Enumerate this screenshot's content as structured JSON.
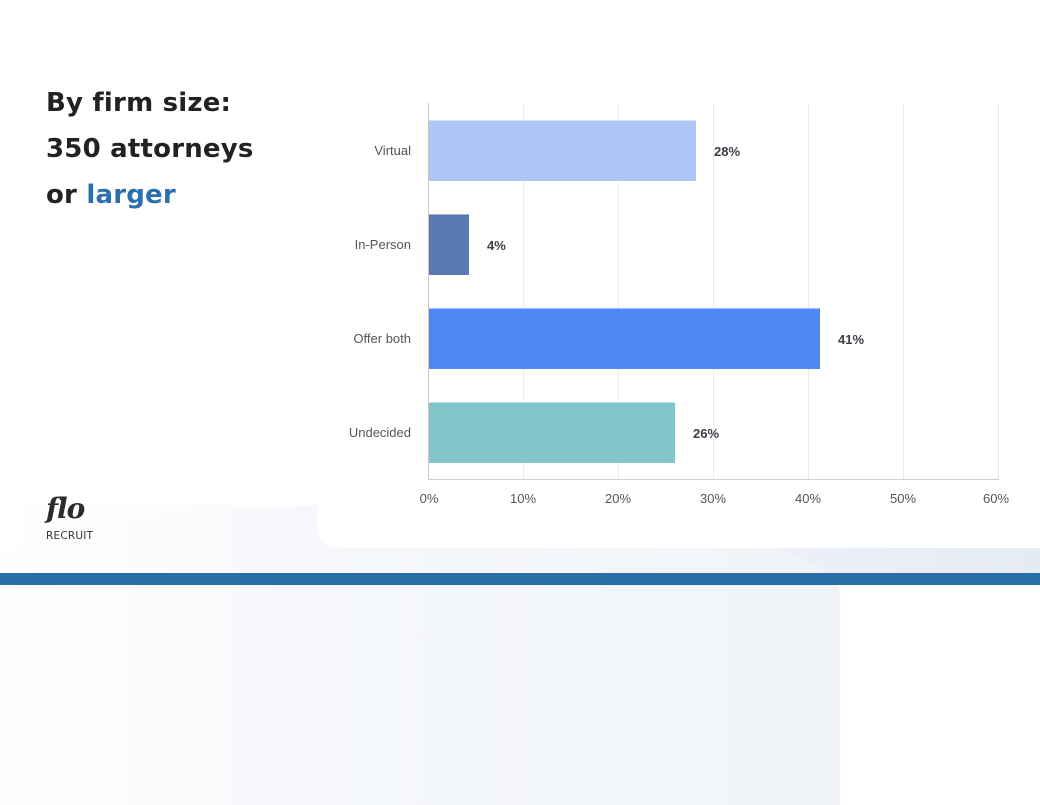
{
  "title": {
    "line1": "By firm size:",
    "line2": "350 attorneys",
    "line3_prefix": "or",
    "line3_accent": "larger",
    "accent_color": "#2c6fae"
  },
  "logo": {
    "script": "flo",
    "word": "RECRUIT"
  },
  "colors": {
    "footer_band": "#2a6ea8",
    "text_dark": "#222222",
    "axis_text": "#555555"
  },
  "chart_data": {
    "type": "bar",
    "orientation": "horizontal",
    "title": "By firm size: 350 attorneys or larger",
    "xlabel": "",
    "ylabel": "",
    "categories": [
      "Virtual",
      "In-Person",
      "Offer both",
      "Undecided"
    ],
    "values": [
      28,
      4,
      41,
      26
    ],
    "value_labels": [
      "28%",
      "4%",
      "41%",
      "26%"
    ],
    "bar_colors": [
      "#adc6f7",
      "#5a79b0",
      "#4f87f4",
      "#82c5cb"
    ],
    "xlim": [
      0,
      60
    ],
    "x_ticks": [
      "0%",
      "10%",
      "20%",
      "30%",
      "40%",
      "50%",
      "60%"
    ],
    "grid": "vertical",
    "legend": "none"
  }
}
